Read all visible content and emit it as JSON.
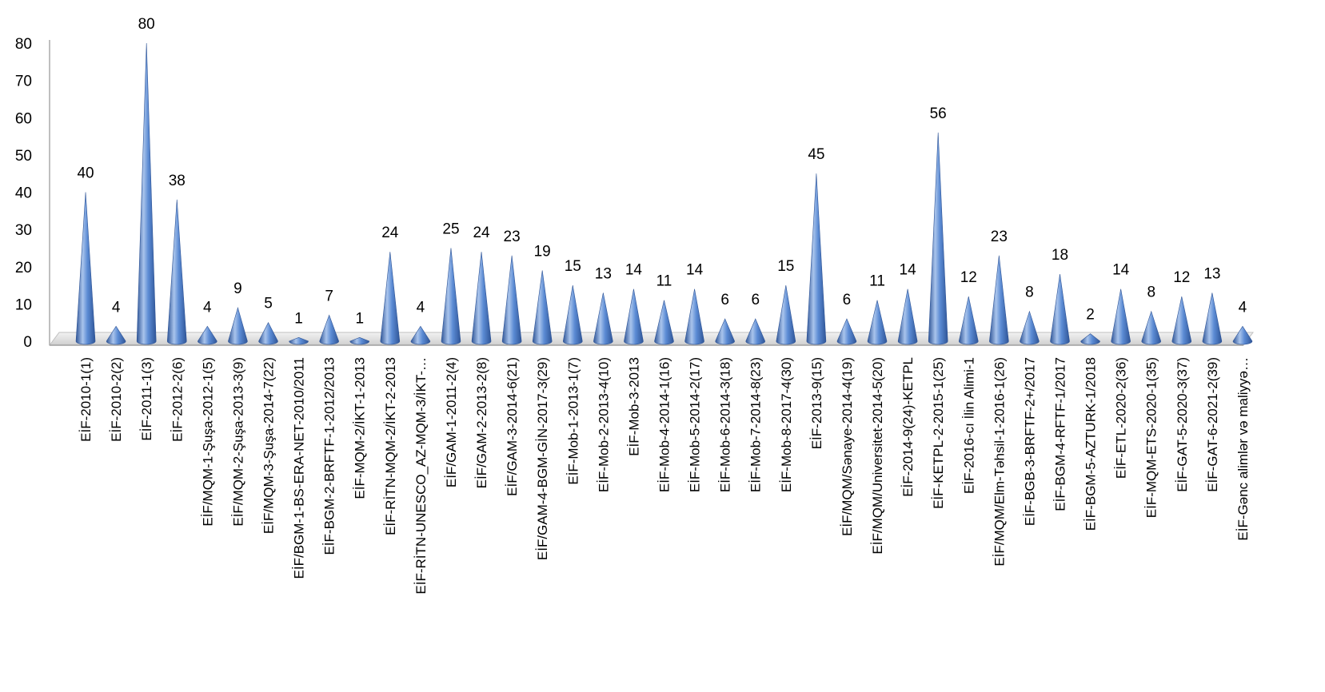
{
  "chart_data": {
    "type": "bar",
    "title": "",
    "xlabel": "",
    "ylabel": "",
    "ylim": [
      0,
      80
    ],
    "yticks": [
      0,
      10,
      20,
      30,
      40,
      50,
      60,
      70,
      80
    ],
    "grid": false,
    "legend": "none",
    "bar_shape": "cone",
    "colors": {
      "bar_light": "#a9c4ec",
      "bar_mid": "#5b8bd4",
      "bar_dark": "#2f5597",
      "floor": "#d9d9d9",
      "axis": "#bfbfbf"
    },
    "categories": [
      "EİF-2010-1(1)",
      "EİF-2010-2(2)",
      "EİF-2011-1(3)",
      "EİF-2012-2(6)",
      "EİF/MQM-1-Şuşa-2012-1(5)",
      "EİF/MQM-2-Şuşa-2013-3(9)",
      "EİF/MQM-3-Şuşa-2014-7(22)",
      "EİF/BGM-1-BS-ERA-NET-2010/2011",
      "EİF-BGM-2-BRFTF-1-2012/2013",
      "EİF-MQM-2/İKT-1-2013",
      "EİF-RİTN-MQM-2/İKT-2-2013",
      "EİF-RİTN-UNESCO_AZ-MQM-3/İKT-…",
      "EİF/GAM-1-2011-2(4)",
      "EİF/GAM-2-2013-2(8)",
      "EİF/GAM-3-2014-6(21)",
      "EİF/GAM-4-BGM-GİN-2017-3(29)",
      "EİF-Mob-1-2013-1(7)",
      "EİF-Mob-2-2013-4(10)",
      "EİF-Mob-3-2013",
      "EİF-Mob-4-2014-1(16)",
      "EİF-Mob-5-2014-2(17)",
      "EİF-Mob-6-2014-3(18)",
      "EİF-Mob-7-2014-8(23)",
      "EİF-Mob-8-2017-4(30)",
      "EİF-2013-9(15)",
      "EİF/MQM/Sənaye-2014-4(19)",
      "EİF/MQM/Universitet-2014-5(20)",
      "EİF-2014-9(24)-KETPL",
      "EİF-KETPL-2-2015-1(25)",
      "EİF-2016-cı İlin Alimi-1",
      "EİF/MQM/Elm-Təhsil-1-2016-1(26)",
      "EİF-BGB-3-BRFTF-2+/2017",
      "EİF-BGM-4-RFTF-1/2017",
      "EİF-BGM-5-AZTURK-1/2018",
      "EİF-ETL-2020-2(36)",
      "EİF-MQM-ETS-2020-1(35)",
      "EİF-GAT-5-2020-3(37)",
      "EİF-GAT-6-2021-2(39)",
      "EİF-Gənc alimlər və maliyyə…"
    ],
    "values": [
      40,
      4,
      80,
      38,
      4,
      9,
      5,
      1,
      7,
      1,
      24,
      4,
      25,
      24,
      23,
      19,
      15,
      13,
      14,
      11,
      14,
      6,
      6,
      15,
      45,
      6,
      11,
      14,
      56,
      12,
      23,
      8,
      18,
      2,
      14,
      8,
      12,
      13,
      4
    ]
  }
}
